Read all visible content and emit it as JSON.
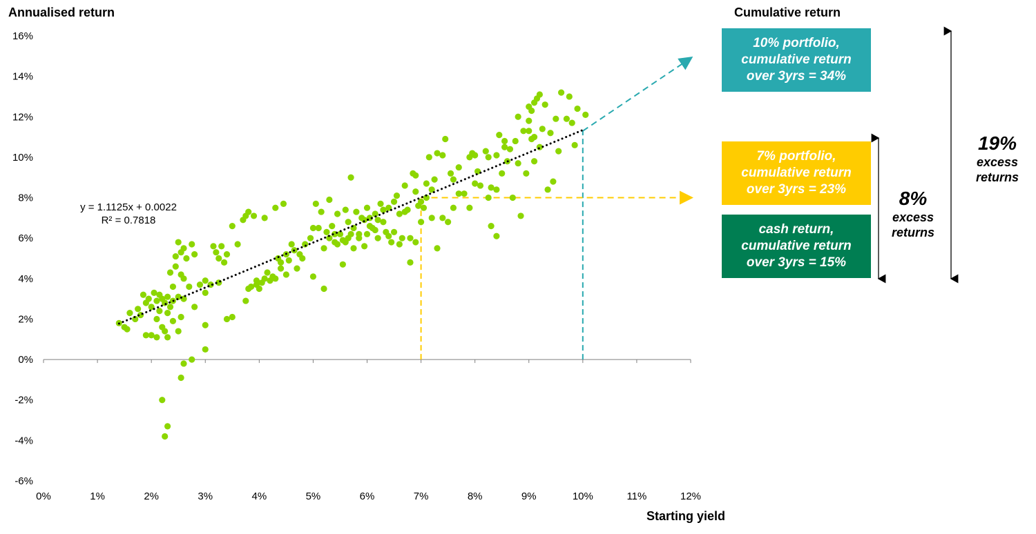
{
  "chart_data": {
    "type": "scatter",
    "ylabel": "Annualised return",
    "xlabel": "Starting yield",
    "xlim": [
      0,
      12
    ],
    "ylim": [
      -6,
      16
    ],
    "x_ticks": [
      "0%",
      "1%",
      "2%",
      "3%",
      "4%",
      "5%",
      "6%",
      "7%",
      "8%",
      "9%",
      "10%",
      "11%",
      "12%"
    ],
    "y_ticks": [
      "16%",
      "14%",
      "12%",
      "10%",
      "8%",
      "6%",
      "4%",
      "2%",
      "0%",
      "-2%",
      "-4%",
      "-6%"
    ],
    "point_color": "#8CD600",
    "trendline": {
      "slope": 1.1125,
      "intercept": 0.22,
      "x_range": [
        1.4,
        10.0
      ],
      "color": "#000000"
    },
    "equation_text": "y = 1.1125x + 0.0022",
    "r2_text": "R² = 0.7818",
    "points": [
      [
        1.4,
        1.8
      ],
      [
        1.5,
        1.6
      ],
      [
        1.55,
        1.5
      ],
      [
        1.6,
        2.3
      ],
      [
        1.7,
        2.0
      ],
      [
        1.75,
        2.5
      ],
      [
        1.8,
        2.2
      ],
      [
        1.85,
        3.2
      ],
      [
        1.9,
        2.8
      ],
      [
        1.9,
        1.2
      ],
      [
        1.95,
        3.0
      ],
      [
        2.0,
        2.6
      ],
      [
        2.0,
        1.2
      ],
      [
        2.05,
        3.3
      ],
      [
        2.1,
        2.9
      ],
      [
        2.1,
        2.0
      ],
      [
        2.1,
        1.1
      ],
      [
        2.15,
        3.2
      ],
      [
        2.15,
        2.4
      ],
      [
        2.2,
        3.0
      ],
      [
        2.2,
        1.6
      ],
      [
        2.25,
        2.8
      ],
      [
        2.25,
        1.4
      ],
      [
        2.3,
        3.1
      ],
      [
        2.3,
        2.3
      ],
      [
        2.3,
        1.1
      ],
      [
        2.35,
        4.3
      ],
      [
        2.35,
        2.6
      ],
      [
        2.4,
        3.6
      ],
      [
        2.4,
        2.9
      ],
      [
        2.4,
        1.9
      ],
      [
        2.45,
        5.1
      ],
      [
        2.45,
        4.6
      ],
      [
        2.5,
        5.8
      ],
      [
        2.5,
        3.1
      ],
      [
        2.5,
        1.4
      ],
      [
        2.55,
        5.3
      ],
      [
        2.55,
        4.2
      ],
      [
        2.6,
        5.5
      ],
      [
        2.6,
        4.0
      ],
      [
        2.6,
        3.0
      ],
      [
        2.65,
        5.0
      ],
      [
        2.7,
        3.6
      ],
      [
        2.75,
        5.7
      ],
      [
        2.8,
        2.6
      ],
      [
        2.8,
        5.2
      ],
      [
        2.2,
        -2.0
      ],
      [
        2.3,
        -3.3
      ],
      [
        2.25,
        -3.8
      ],
      [
        2.55,
        -0.9
      ],
      [
        2.6,
        -0.2
      ],
      [
        2.75,
        0.0
      ],
      [
        2.55,
        2.1
      ],
      [
        3.0,
        1.7
      ],
      [
        3.0,
        0.5
      ],
      [
        2.9,
        3.7
      ],
      [
        3.0,
        3.9
      ],
      [
        3.0,
        3.3
      ],
      [
        3.1,
        3.7
      ],
      [
        3.15,
        5.6
      ],
      [
        3.2,
        5.3
      ],
      [
        3.25,
        5.0
      ],
      [
        3.25,
        3.8
      ],
      [
        3.3,
        5.6
      ],
      [
        3.35,
        4.8
      ],
      [
        3.4,
        5.2
      ],
      [
        3.4,
        2.0
      ],
      [
        3.5,
        2.1
      ],
      [
        3.5,
        6.6
      ],
      [
        3.6,
        5.7
      ],
      [
        3.7,
        6.9
      ],
      [
        3.75,
        7.1
      ],
      [
        3.8,
        7.3
      ],
      [
        3.85,
        3.6
      ],
      [
        3.9,
        7.1
      ],
      [
        3.95,
        3.7
      ],
      [
        4.0,
        3.5
      ],
      [
        4.05,
        3.8
      ],
      [
        4.1,
        4.0
      ],
      [
        4.1,
        7.0
      ],
      [
        4.2,
        3.9
      ],
      [
        4.3,
        4.0
      ],
      [
        4.3,
        7.5
      ],
      [
        4.35,
        5.0
      ],
      [
        4.4,
        4.5
      ],
      [
        4.45,
        7.7
      ],
      [
        4.5,
        4.2
      ],
      [
        4.5,
        5.2
      ],
      [
        4.6,
        5.7
      ],
      [
        4.7,
        4.5
      ],
      [
        4.8,
        5.0
      ],
      [
        4.85,
        5.7
      ],
      [
        5.0,
        6.5
      ],
      [
        5.0,
        4.1
      ],
      [
        5.05,
        7.7
      ],
      [
        5.1,
        6.5
      ],
      [
        5.15,
        7.3
      ],
      [
        5.2,
        5.5
      ],
      [
        5.2,
        3.5
      ],
      [
        5.3,
        6.0
      ],
      [
        5.3,
        7.9
      ],
      [
        5.4,
        6.2
      ],
      [
        5.4,
        5.8
      ],
      [
        5.45,
        7.2
      ],
      [
        5.5,
        6.2
      ],
      [
        5.55,
        4.7
      ],
      [
        5.6,
        7.4
      ],
      [
        5.6,
        5.8
      ],
      [
        5.65,
        6.8
      ],
      [
        5.7,
        9.0
      ],
      [
        5.7,
        6.2
      ],
      [
        5.75,
        5.5
      ],
      [
        5.8,
        7.3
      ],
      [
        5.85,
        6.0
      ],
      [
        5.9,
        7.0
      ],
      [
        5.95,
        5.6
      ],
      [
        6.0,
        7.5
      ],
      [
        6.0,
        6.2
      ],
      [
        6.05,
        7.0
      ],
      [
        6.1,
        6.5
      ],
      [
        6.15,
        7.2
      ],
      [
        6.2,
        6.0
      ],
      [
        6.25,
        7.7
      ],
      [
        6.3,
        6.8
      ],
      [
        6.35,
        6.3
      ],
      [
        6.4,
        7.5
      ],
      [
        6.45,
        5.8
      ],
      [
        6.5,
        7.8
      ],
      [
        6.5,
        6.3
      ],
      [
        6.55,
        8.1
      ],
      [
        6.6,
        7.2
      ],
      [
        6.65,
        6.0
      ],
      [
        6.7,
        8.6
      ],
      [
        6.75,
        7.4
      ],
      [
        6.8,
        4.8
      ],
      [
        6.8,
        6.0
      ],
      [
        6.85,
        9.2
      ],
      [
        6.9,
        8.3
      ],
      [
        6.9,
        5.8
      ],
      [
        6.95,
        7.6
      ],
      [
        7.0,
        7.8
      ],
      [
        7.0,
        6.8
      ],
      [
        7.05,
        7.5
      ],
      [
        7.1,
        8.0
      ],
      [
        7.15,
        10.0
      ],
      [
        7.2,
        7.0
      ],
      [
        7.2,
        8.4
      ],
      [
        7.25,
        8.9
      ],
      [
        7.3,
        10.2
      ],
      [
        7.3,
        5.5
      ],
      [
        7.4,
        10.1
      ],
      [
        7.4,
        7.0
      ],
      [
        7.45,
        10.9
      ],
      [
        7.5,
        6.8
      ],
      [
        7.55,
        9.2
      ],
      [
        7.6,
        7.5
      ],
      [
        7.7,
        9.5
      ],
      [
        7.7,
        8.2
      ],
      [
        7.8,
        8.2
      ],
      [
        7.9,
        10.0
      ],
      [
        7.9,
        7.5
      ],
      [
        8.0,
        10.1
      ],
      [
        8.0,
        8.7
      ],
      [
        8.1,
        8.6
      ],
      [
        8.2,
        10.3
      ],
      [
        8.25,
        8.0
      ],
      [
        8.3,
        8.5
      ],
      [
        8.3,
        6.6
      ],
      [
        8.4,
        10.1
      ],
      [
        8.4,
        8.4
      ],
      [
        8.45,
        11.1
      ],
      [
        8.5,
        9.2
      ],
      [
        8.55,
        10.8
      ],
      [
        8.6,
        9.8
      ],
      [
        8.65,
        10.4
      ],
      [
        8.7,
        8.0
      ],
      [
        8.75,
        10.8
      ],
      [
        8.8,
        9.7
      ],
      [
        8.8,
        12.0
      ],
      [
        8.85,
        7.1
      ],
      [
        8.9,
        11.3
      ],
      [
        8.95,
        9.2
      ],
      [
        9.0,
        12.5
      ],
      [
        9.0,
        11.8
      ],
      [
        9.05,
        12.3
      ],
      [
        9.05,
        10.9
      ],
      [
        9.1,
        11.0
      ],
      [
        9.1,
        12.7
      ],
      [
        9.15,
        12.9
      ],
      [
        9.2,
        10.5
      ],
      [
        9.2,
        13.1
      ],
      [
        9.25,
        11.4
      ],
      [
        9.3,
        12.6
      ],
      [
        9.35,
        8.4
      ],
      [
        9.4,
        11.2
      ],
      [
        9.45,
        8.8
      ],
      [
        9.5,
        11.9
      ],
      [
        9.55,
        10.3
      ],
      [
        9.6,
        13.2
      ],
      [
        9.7,
        11.9
      ],
      [
        9.75,
        13.0
      ],
      [
        9.8,
        11.7
      ],
      [
        9.85,
        10.6
      ],
      [
        9.9,
        12.4
      ],
      [
        10.05,
        12.1
      ],
      [
        8.4,
        6.1
      ],
      [
        7.95,
        10.2
      ],
      [
        9.1,
        9.8
      ],
      [
        9.0,
        11.3
      ],
      [
        6.6,
        5.7
      ],
      [
        6.2,
        6.9
      ],
      [
        6.3,
        7.4
      ],
      [
        6.4,
        6.1
      ],
      [
        6.9,
        9.1
      ],
      [
        6.7,
        7.3
      ],
      [
        7.1,
        8.7
      ],
      [
        7.6,
        8.9
      ],
      [
        8.55,
        10.5
      ],
      [
        8.25,
        10.0
      ],
      [
        8.05,
        9.3
      ],
      [
        5.95,
        6.9
      ],
      [
        6.05,
        6.6
      ],
      [
        6.15,
        6.4
      ],
      [
        5.85,
        6.2
      ],
      [
        5.75,
        6.5
      ],
      [
        5.65,
        6.0
      ],
      [
        5.55,
        5.9
      ],
      [
        5.45,
        5.7
      ],
      [
        5.35,
        6.6
      ],
      [
        5.25,
        6.3
      ],
      [
        4.95,
        6.0
      ],
      [
        4.75,
        5.2
      ],
      [
        4.65,
        5.4
      ],
      [
        4.55,
        4.9
      ],
      [
        4.4,
        4.8
      ],
      [
        4.25,
        4.1
      ],
      [
        4.15,
        4.3
      ],
      [
        3.95,
        3.9
      ],
      [
        3.8,
        3.5
      ],
      [
        3.75,
        2.9
      ]
    ],
    "guides": [
      {
        "x": 7,
        "y": 8,
        "color": "#FFCC00"
      },
      {
        "x": 10,
        "y": 11.3,
        "color": "#29A9AF"
      }
    ],
    "arrows": [
      {
        "from": [
          7,
          8
        ],
        "to": [
          12,
          8
        ],
        "color": "#FFCC00"
      },
      {
        "from": [
          10,
          11.3
        ],
        "to": [
          12,
          14.9
        ],
        "color": "#29A9AF"
      }
    ]
  },
  "right_panel": {
    "title": "Cumulative return",
    "box_10": {
      "line1": "10% portfolio,",
      "line2": "cumulative return",
      "line3": "over 3yrs = 34%",
      "color": "#29A9AF"
    },
    "box_7": {
      "line1": "7% portfolio,",
      "line2": "cumulative return",
      "line3": "over 3yrs = 23%",
      "color": "#FFCC00"
    },
    "box_cash": {
      "line1": "cash return,",
      "line2": "cumulative return",
      "line3": "over 3yrs = 15%",
      "color": "#007E52"
    },
    "excess_8": {
      "value": "8%",
      "line1": "excess",
      "line2": "returns"
    },
    "excess_19": {
      "value": "19%",
      "line1": "excess",
      "line2": "returns"
    }
  }
}
